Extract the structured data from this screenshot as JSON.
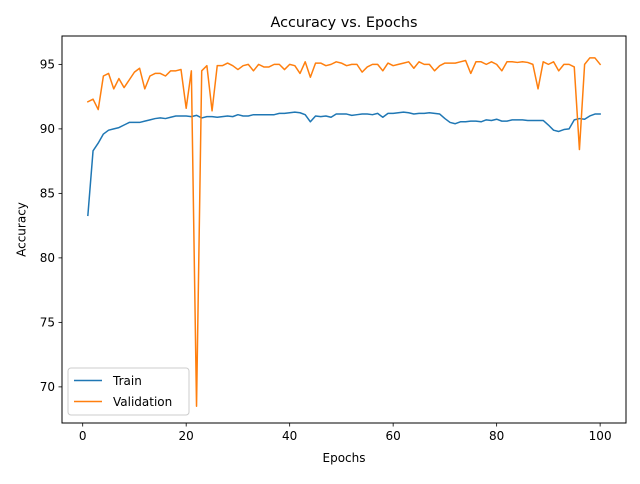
{
  "chart_data": {
    "type": "line",
    "title": "Accuracy vs. Epochs",
    "xlabel": "Epochs",
    "ylabel": "Accuracy",
    "xlim": [
      -4,
      105
    ],
    "ylim": [
      67.2,
      97.2
    ],
    "xticks": [
      0,
      20,
      40,
      60,
      80,
      100
    ],
    "yticks": [
      70,
      75,
      80,
      85,
      90,
      95
    ],
    "grid": false,
    "legend_position": "lower-left",
    "x": [
      1,
      2,
      3,
      4,
      5,
      6,
      7,
      8,
      9,
      10,
      11,
      12,
      13,
      14,
      15,
      16,
      17,
      18,
      19,
      20,
      21,
      22,
      23,
      24,
      25,
      26,
      27,
      28,
      29,
      30,
      31,
      32,
      33,
      34,
      35,
      36,
      37,
      38,
      39,
      40,
      41,
      42,
      43,
      44,
      45,
      46,
      47,
      48,
      49,
      50,
      51,
      52,
      53,
      54,
      55,
      56,
      57,
      58,
      59,
      60,
      61,
      62,
      63,
      64,
      65,
      66,
      67,
      68,
      69,
      70,
      71,
      72,
      73,
      74,
      75,
      76,
      77,
      78,
      79,
      80,
      81,
      82,
      83,
      84,
      85,
      86,
      87,
      88,
      89,
      90,
      91,
      92,
      93,
      94,
      95,
      96,
      97,
      98,
      99,
      100
    ],
    "series": [
      {
        "name": "Train",
        "color": "#1f77b4",
        "values": [
          83.3,
          88.3,
          88.9,
          89.6,
          89.9,
          90.0,
          90.1,
          90.3,
          90.5,
          90.5,
          90.5,
          90.6,
          90.7,
          90.8,
          90.85,
          90.8,
          90.9,
          91.0,
          91.0,
          91.0,
          90.95,
          91.05,
          90.85,
          90.95,
          90.95,
          90.9,
          90.95,
          91.0,
          90.95,
          91.1,
          91.0,
          91.0,
          91.1,
          91.1,
          91.1,
          91.1,
          91.1,
          91.2,
          91.2,
          91.25,
          91.3,
          91.25,
          91.1,
          90.55,
          91.0,
          90.95,
          91.0,
          90.9,
          91.15,
          91.15,
          91.15,
          91.05,
          91.1,
          91.15,
          91.15,
          91.1,
          91.2,
          90.9,
          91.2,
          91.2,
          91.25,
          91.3,
          91.25,
          91.15,
          91.2,
          91.2,
          91.25,
          91.2,
          91.15,
          90.8,
          90.5,
          90.4,
          90.55,
          90.55,
          90.6,
          90.6,
          90.55,
          90.7,
          90.65,
          90.75,
          90.6,
          90.6,
          90.7,
          90.7,
          90.7,
          90.65,
          90.65,
          90.65,
          90.65,
          90.3,
          89.9,
          89.8,
          89.95,
          90.0,
          90.7,
          90.8,
          90.75,
          91.0,
          91.15,
          91.15
        ]
      },
      {
        "name": "Validation",
        "color": "#ff7f0e",
        "values": [
          92.1,
          92.3,
          91.5,
          94.1,
          94.3,
          93.1,
          93.9,
          93.2,
          93.8,
          94.4,
          94.7,
          93.1,
          94.1,
          94.3,
          94.3,
          94.1,
          94.5,
          94.5,
          94.6,
          91.6,
          94.5,
          68.5,
          94.5,
          94.9,
          91.4,
          94.9,
          94.9,
          95.1,
          94.9,
          94.6,
          94.9,
          95.0,
          94.5,
          95.0,
          94.8,
          94.8,
          95.0,
          95.0,
          94.6,
          95.0,
          94.9,
          94.3,
          95.2,
          94.0,
          95.1,
          95.1,
          94.9,
          95.0,
          95.2,
          95.1,
          94.9,
          95.0,
          95.0,
          94.4,
          94.8,
          95.0,
          95.0,
          94.5,
          95.1,
          94.9,
          95.0,
          95.1,
          95.2,
          94.7,
          95.2,
          95.0,
          95.0,
          94.5,
          94.9,
          95.1,
          95.1,
          95.1,
          95.2,
          95.3,
          94.3,
          95.2,
          95.2,
          95.0,
          95.2,
          95.0,
          94.5,
          95.2,
          95.2,
          95.15,
          95.2,
          95.15,
          95.0,
          93.1,
          95.2,
          95.0,
          95.2,
          94.5,
          95.0,
          95.0,
          94.8,
          88.4,
          95.0,
          95.5,
          95.5,
          95.0
        ]
      }
    ]
  }
}
